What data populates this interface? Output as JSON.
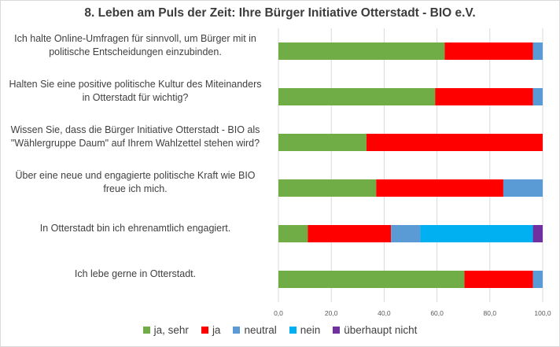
{
  "chart_data": {
    "type": "bar",
    "orientation": "horizontal",
    "stacked": true,
    "title": "8. Leben am Puls der Zeit: Ihre Bürger Initiative Otterstadt - BIO e.V.",
    "categories": [
      [
        "Ich halte Online-Umfragen für sinnvoll, um Bürger mit in",
        "politische Entscheidungen einzubinden."
      ],
      [
        "Halten Sie eine positive politische Kultur des Miteinanders",
        "in Otterstadt für wichtig?"
      ],
      [
        "Wissen Sie, dass die Bürger Initiative Otterstadt - BIO als",
        "\"Wählergruppe Daum\" auf Ihrem Wahlzettel stehen wird?"
      ],
      [
        "Über eine neue und engagierte politische Kraft wie BIO",
        "freue ich mich."
      ],
      [
        "In Otterstadt bin ich ehrenamtlich engagiert."
      ],
      [
        "Ich lebe gerne in Otterstadt."
      ]
    ],
    "series": [
      {
        "name": "ja, sehr",
        "color": "#70ad47",
        "values": [
          62.9,
          59.3,
          33.3,
          37.0,
          11.1,
          70.4
        ]
      },
      {
        "name": "ja",
        "color": "#ff0000",
        "values": [
          33.4,
          37.0,
          66.7,
          48.1,
          31.5,
          25.9
        ]
      },
      {
        "name": "neutral",
        "color": "#5b9bd5",
        "values": [
          3.7,
          3.7,
          0.0,
          14.9,
          11.1,
          3.7
        ]
      },
      {
        "name": "nein",
        "color": "#00b0f0",
        "values": [
          0.0,
          0.0,
          0.0,
          0.0,
          42.6,
          0.0
        ]
      },
      {
        "name": "überhaupt nicht",
        "color": "#7030a0",
        "values": [
          0.0,
          0.0,
          0.0,
          0.0,
          3.7,
          0.0
        ]
      }
    ],
    "x_ticks": [
      "0,0",
      "20,0",
      "40,0",
      "60,0",
      "80,0",
      "100,0"
    ],
    "xlim": [
      0,
      100
    ],
    "grid": true,
    "gridline_color": "#d9d9d9",
    "legend_position": "bottom"
  }
}
